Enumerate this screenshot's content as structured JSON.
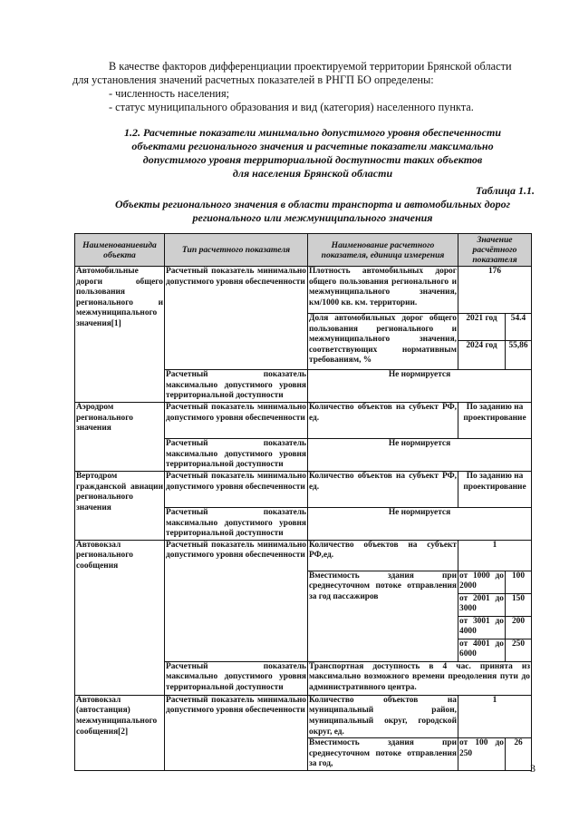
{
  "intro": {
    "line1": "В качестве факторов дифференциации проектируемой территории Брянской области",
    "line2": "для установления значений расчетных показателей в РНГП БО определены:",
    "item1": "- численность населения;",
    "item2": "- статус муниципального образования и вид (категория) населенного пункта."
  },
  "section": {
    "l1": "1.2. Расчетные показатели минимально допустимого уровня обеспеченности",
    "l2": "объектами регионального значения и расчетные показатели максимально",
    "l3": "допустимого уровня территориальной доступности таких объектов",
    "l4": "для населения Брянской области"
  },
  "table_label": "Таблица 1.1.",
  "table_title": {
    "l1": "Объекты регионального значения в области транспорта и автомобильных дорог",
    "l2": "регионального или межмуниципального значения"
  },
  "headers": [
    "Наименованиевида объекта",
    "Тип расчетного показателя",
    "Наименование расчетного показателя, единица измерения",
    "Значение расчётного показателя"
  ],
  "common": {
    "min": "Расчетный показатель минимально допустимого уровня обеспеченности",
    "max": "Расчетный показатель максимально допустимого уровня территориальной доступности",
    "not_norm": "Не нормируется",
    "by_task": "По заданию на проектирование",
    "count_rf": "Количество объектов на субъект РФ, ед.",
    "capacity": "Вместимость здания при среднесуточном потоке отправления за год пассажиров",
    "capacity2": "Вместимость здания при среднесуточном потоке отправления за год,"
  },
  "rows": {
    "roads": {
      "name": "Автомобильные дороги общего пользования регионального и межмуниципального значения[1]",
      "density": "Плотность автомобильных дорог общего пользования регионального и межмуниципального значения, км/1000 кв. км. территории.",
      "density_val": "176",
      "share": "Доля автомобильных дорог общего пользования регионального и межмуниципального значения, соответствующих нормативным требованиям, %",
      "y1": "2021 год",
      "v1": "54.4",
      "y2": "2024 год",
      "v2": "55,86"
    },
    "airport": {
      "name": "Аэродром регионального значения"
    },
    "heliport": {
      "name": "Вертодром гражданской авиации регионального значения"
    },
    "busreg": {
      "name": "Автовокзал регионального сообщения",
      "count": "Количество объектов на субъект РФ,ед.",
      "count_val": "1",
      "ranges": [
        {
          "r": "от 1000 до 2000",
          "v": "100"
        },
        {
          "r": "от 2001 до 3000",
          "v": "150"
        },
        {
          "r": "от 3001 до 4000",
          "v": "200"
        },
        {
          "r": "от 4001 до 6000",
          "v": "250"
        }
      ],
      "access": "Транспортная доступность в 4 час. принята из максимально возможного времени преодоления пути до административного центра."
    },
    "busmun": {
      "name": "Автовокзал (автостанция) межмуниципального сообщения[2]",
      "count": "Количество объектов на муниципальный район, муниципальный округ, городской округ, ед.",
      "count_val": "1",
      "range": "от 100 до 250",
      "range_val": "26"
    }
  },
  "page_number": "3"
}
